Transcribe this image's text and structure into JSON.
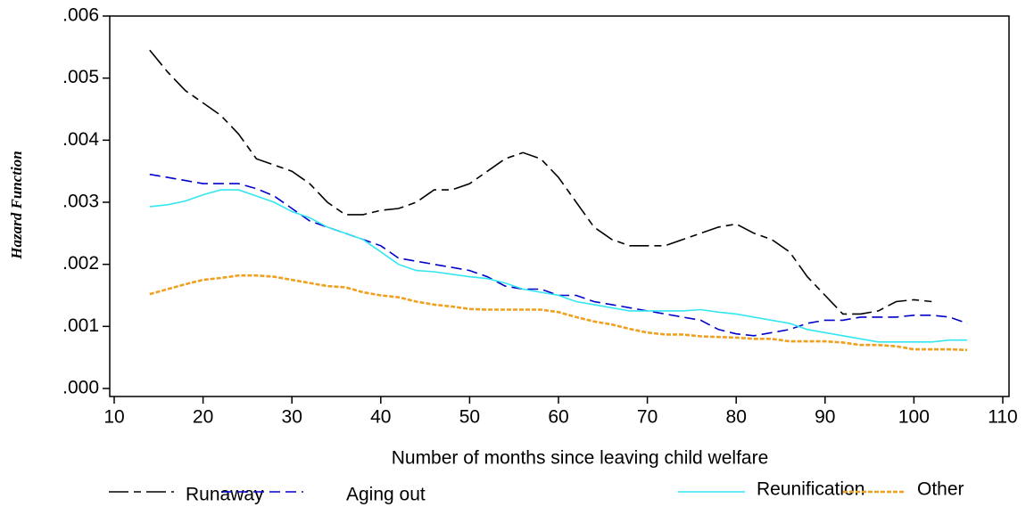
{
  "chart_data": {
    "type": "line",
    "x_label": "Number of months since leaving child welfare",
    "y_label": "Hazard Function",
    "x": [
      14,
      16,
      18,
      20,
      22,
      24,
      26,
      28,
      30,
      32,
      34,
      36,
      38,
      40,
      42,
      44,
      46,
      48,
      50,
      52,
      54,
      56,
      58,
      60,
      62,
      64,
      66,
      68,
      70,
      72,
      74,
      76,
      78,
      80,
      82,
      84,
      86,
      88,
      90,
      92,
      94,
      96,
      98,
      100,
      102,
      104,
      106
    ],
    "series": [
      {
        "name": "Runaway",
        "color": "#000000",
        "values": [
          0.00545,
          0.0051,
          0.0048,
          0.0046,
          0.0044,
          0.0041,
          0.0037,
          0.0036,
          0.0035,
          0.0033,
          0.003,
          0.0028,
          0.0028,
          0.00287,
          0.0029,
          0.003,
          0.0032,
          0.0032,
          0.0033,
          0.0035,
          0.0037,
          0.0038,
          0.0037,
          0.0034,
          0.003,
          0.0026,
          0.0024,
          0.0023,
          0.0023,
          0.0023,
          0.0024,
          0.0025,
          0.0026,
          0.00265,
          0.0025,
          0.0024,
          0.0022,
          0.0018,
          0.0015,
          0.0012,
          0.0012,
          0.00125,
          0.0014,
          0.00143,
          0.0014,
          null,
          null
        ]
      },
      {
        "name": "Aging out",
        "color": "#0000cc",
        "values": [
          0.00345,
          0.0034,
          0.00335,
          0.0033,
          0.0033,
          0.0033,
          0.00322,
          0.0031,
          0.0029,
          0.0027,
          0.0026,
          0.0025,
          0.0024,
          0.0023,
          0.0021,
          0.00205,
          0.002,
          0.00195,
          0.0019,
          0.0018,
          0.00165,
          0.0016,
          0.0016,
          0.0015,
          0.0015,
          0.0014,
          0.00135,
          0.0013,
          0.00125,
          0.0012,
          0.00115,
          0.0011,
          0.00095,
          0.00088,
          0.00085,
          0.0009,
          0.00095,
          0.00105,
          0.0011,
          0.0011,
          0.00115,
          0.00115,
          0.00115,
          0.00118,
          0.00118,
          0.00115,
          0.00105
        ]
      },
      {
        "name": "Reunification",
        "color": "#33e6f0",
        "values": [
          0.00293,
          0.00296,
          0.00302,
          0.00312,
          0.0032,
          0.0032,
          0.0031,
          0.003,
          0.00285,
          0.00275,
          0.0026,
          0.0025,
          0.0024,
          0.0022,
          0.002,
          0.0019,
          0.00188,
          0.00184,
          0.0018,
          0.00177,
          0.0017,
          0.0016,
          0.00155,
          0.0015,
          0.0014,
          0.00135,
          0.0013,
          0.00125,
          0.00125,
          0.00125,
          0.00125,
          0.00127,
          0.00123,
          0.0012,
          0.00115,
          0.0011,
          0.00105,
          0.00095,
          0.0009,
          0.00085,
          0.0008,
          0.00075,
          0.00075,
          0.00075,
          0.00075,
          0.00078,
          0.00078
        ]
      },
      {
        "name": "Other",
        "color": "#f0a020",
        "values": [
          0.00152,
          0.0016,
          0.00168,
          0.00175,
          0.00178,
          0.00182,
          0.00182,
          0.0018,
          0.00175,
          0.0017,
          0.00165,
          0.00163,
          0.00155,
          0.0015,
          0.00147,
          0.0014,
          0.00135,
          0.00132,
          0.00128,
          0.00127,
          0.00127,
          0.00127,
          0.00127,
          0.00123,
          0.00115,
          0.00108,
          0.00103,
          0.00096,
          0.0009,
          0.00087,
          0.00087,
          0.00084,
          0.00083,
          0.00082,
          0.0008,
          0.0008,
          0.00076,
          0.00076,
          0.00076,
          0.00074,
          0.0007,
          0.0007,
          0.00068,
          0.00063,
          0.00063,
          0.00063,
          0.00062
        ]
      }
    ],
    "xlim": [
      10,
      110
    ],
    "xticks": [
      10,
      20,
      30,
      40,
      50,
      60,
      70,
      80,
      90,
      100,
      110
    ],
    "ylim": [
      0,
      0.006
    ],
    "yticks": [
      {
        "value": 0,
        "label": ".000"
      },
      {
        "value": 0.001,
        "label": ".001"
      },
      {
        "value": 0.002,
        "label": ".002"
      },
      {
        "value": 0.003,
        "label": ".003"
      },
      {
        "value": 0.004,
        "label": ".004"
      },
      {
        "value": 0.005,
        "label": ".005"
      },
      {
        "value": 0.006,
        "label": ".006"
      }
    ],
    "legend": "bottom"
  }
}
